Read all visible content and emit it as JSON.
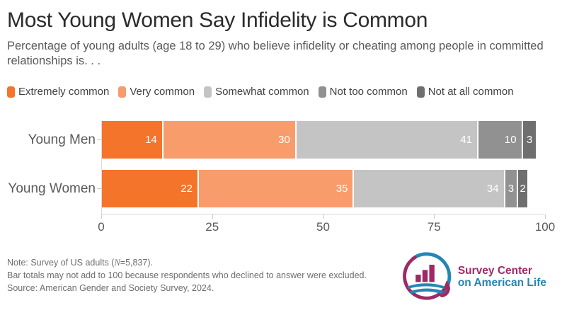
{
  "header": {
    "title": "Most Young Women Say Infidelity is Common",
    "subtitle": "Percentage of young adults (age 18 to 29) who believe infidelity or cheating among people in committed relationships is. . ."
  },
  "chart_data": {
    "type": "bar",
    "orientation": "horizontal",
    "stacked": true,
    "categories": [
      "Young Men",
      "Young Women"
    ],
    "series": [
      {
        "name": "Extremely common",
        "color": "#F4742B",
        "values": [
          14,
          22
        ]
      },
      {
        "name": "Very common",
        "color": "#F89C6C",
        "values": [
          30,
          35
        ]
      },
      {
        "name": "Somewhat common",
        "color": "#C4C4C4",
        "values": [
          41,
          34
        ]
      },
      {
        "name": "Not too common",
        "color": "#919191",
        "values": [
          10,
          3
        ]
      },
      {
        "name": "Not at all common",
        "color": "#6F6F6F",
        "values": [
          3,
          2
        ]
      }
    ],
    "xlim": [
      0,
      100
    ],
    "x_ticks": [
      0,
      25,
      50,
      75,
      100
    ],
    "legend_position": "top",
    "value_label_style": "white, inside end of segment",
    "grid": false
  },
  "notes": {
    "note_prefix": "Note: Survey of US adults (",
    "note_n": "N",
    "note_suffix": "=5,837).",
    "line2": "Bar totals may not add to 100 because respondents who declined to answer were excluded.",
    "line3": "Source: American Gender and Society Survey, 2024."
  },
  "logo": {
    "line1": "Survey Center",
    "line2": "on American Life",
    "magenta": "#9E2A63",
    "blue": "#2586B4"
  }
}
